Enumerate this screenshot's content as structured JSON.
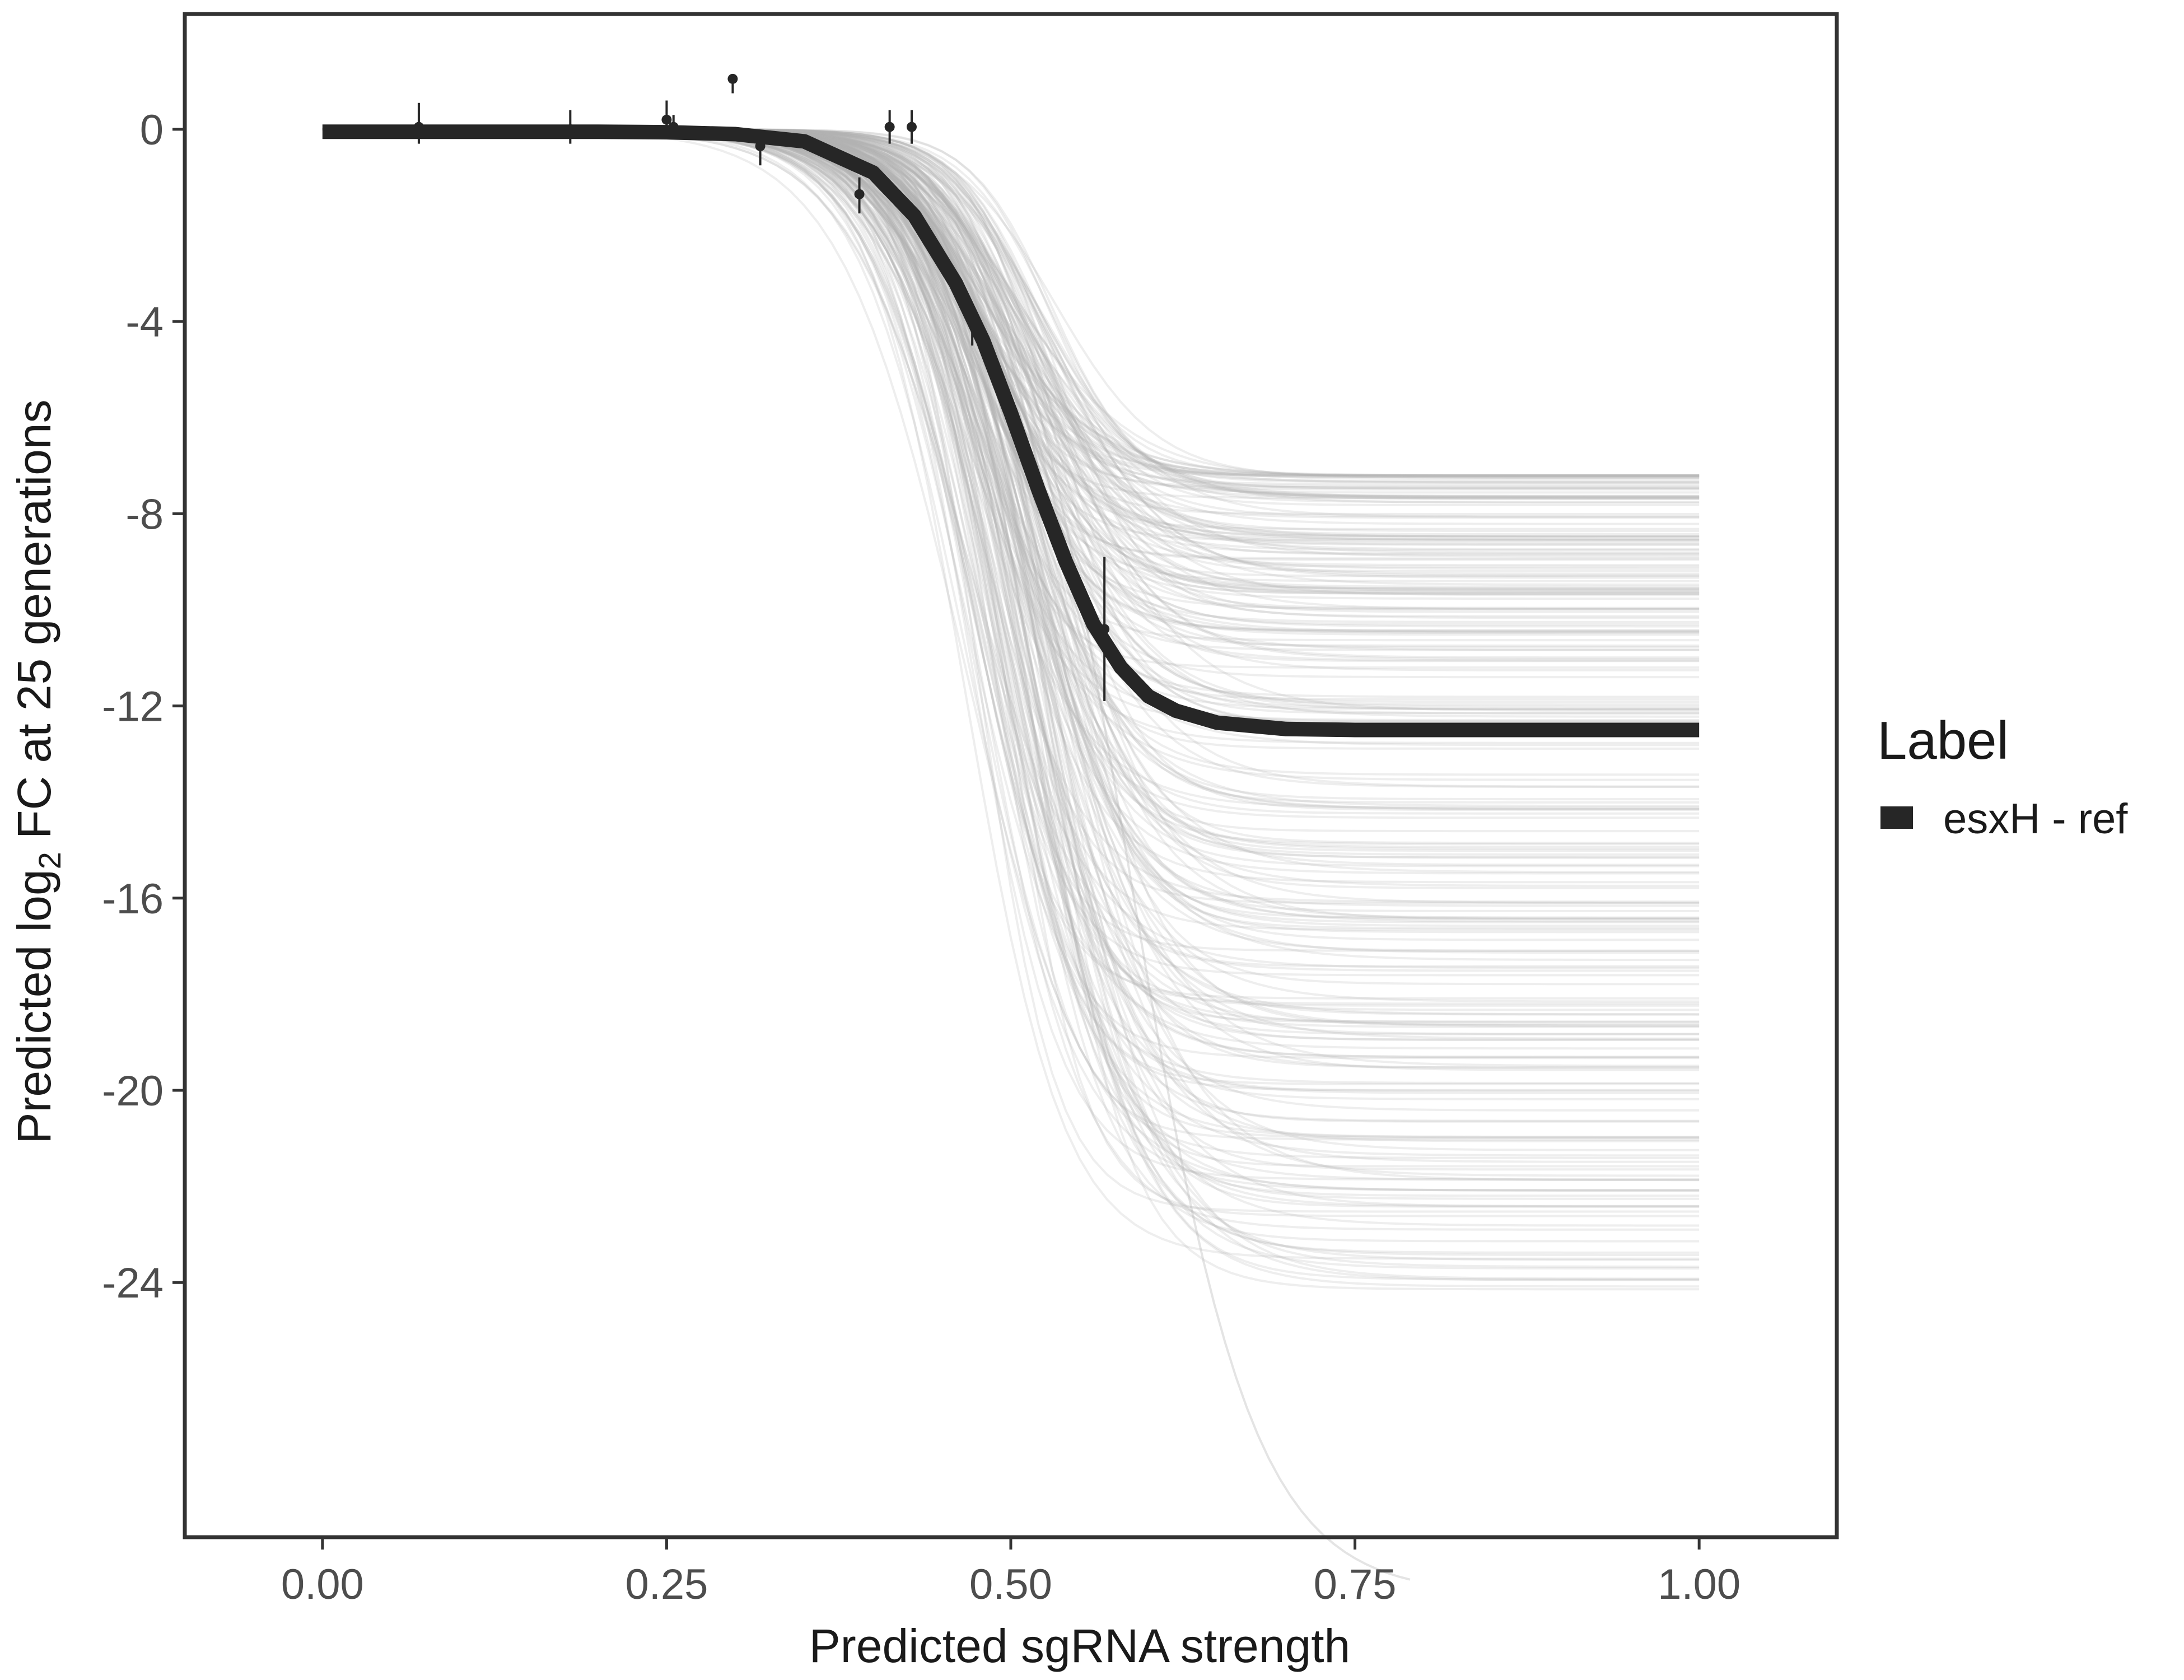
{
  "chart_data": {
    "type": "line",
    "xlabel": "Predicted sgRNA strength",
    "ylabel_parts": [
      "Predicted  log",
      "2",
      " FC at 25 generations"
    ],
    "xlim": [
      -0.1,
      1.1
    ],
    "ylim": [
      -29.3,
      2.4
    ],
    "x_ticks": [
      0.0,
      0.25,
      0.5,
      0.75,
      1.0
    ],
    "x_tick_labels": [
      "0.00",
      "0.25",
      "0.50",
      "0.75",
      "1.00"
    ],
    "y_ticks": [
      0,
      -4,
      -8,
      -12,
      -16,
      -20,
      -24
    ],
    "y_tick_labels": [
      "0",
      "-4",
      "-8",
      "-12",
      "-16",
      "-20",
      "-24"
    ],
    "grid": false,
    "legend": {
      "title": "Label",
      "position": "right",
      "entries": [
        {
          "name": "esxH - ref",
          "color": "#262626"
        }
      ]
    },
    "fit_curve": {
      "name": "esxH - ref",
      "color": "#262626",
      "x": [
        0.0,
        0.05,
        0.1,
        0.15,
        0.2,
        0.25,
        0.3,
        0.35,
        0.4,
        0.43,
        0.46,
        0.48,
        0.5,
        0.52,
        0.54,
        0.56,
        0.58,
        0.6,
        0.62,
        0.65,
        0.7,
        0.75,
        0.8,
        0.85,
        0.9,
        0.95,
        1.0
      ],
      "y": [
        -0.05,
        -0.05,
        -0.05,
        -0.05,
        -0.05,
        -0.06,
        -0.1,
        -0.25,
        -0.9,
        -1.8,
        -3.2,
        -4.4,
        -5.9,
        -7.5,
        -9.0,
        -10.3,
        -11.2,
        -11.8,
        -12.1,
        -12.35,
        -12.48,
        -12.5,
        -12.5,
        -12.5,
        -12.5,
        -12.5,
        -12.5
      ]
    },
    "posterior_draws": {
      "color": "#b3b3b3",
      "count": 260,
      "x_range": [
        0.0,
        1.0
      ],
      "asymptote_range": [
        -7.2,
        -24.2
      ],
      "steepest_asymptote": -30.5,
      "steepest_x_end": 0.79
    },
    "observations": [
      {
        "x": 0.07,
        "y": 0.05,
        "lo": -0.3,
        "hi": 0.55
      },
      {
        "x": 0.18,
        "y": 0.0,
        "lo": -0.3,
        "hi": 0.4
      },
      {
        "x": 0.25,
        "y": 0.2,
        "lo": -0.1,
        "hi": 0.6
      },
      {
        "x": 0.255,
        "y": 0.05,
        "lo": -0.2,
        "hi": 0.3
      },
      {
        "x": 0.298,
        "y": 1.05,
        "lo": 0.75,
        "hi": 1.1
      },
      {
        "x": 0.318,
        "y": -0.35,
        "lo": -0.75,
        "hi": -0.05
      },
      {
        "x": 0.39,
        "y": -1.35,
        "lo": -1.75,
        "hi": -1.0
      },
      {
        "x": 0.412,
        "y": 0.05,
        "lo": -0.3,
        "hi": 0.4
      },
      {
        "x": 0.428,
        "y": 0.05,
        "lo": -0.3,
        "hi": 0.4
      },
      {
        "x": 0.472,
        "y": -4.0,
        "lo": -4.5,
        "hi": -3.7
      },
      {
        "x": 0.568,
        "y": -10.4,
        "lo": -11.9,
        "hi": -8.9
      }
    ]
  }
}
